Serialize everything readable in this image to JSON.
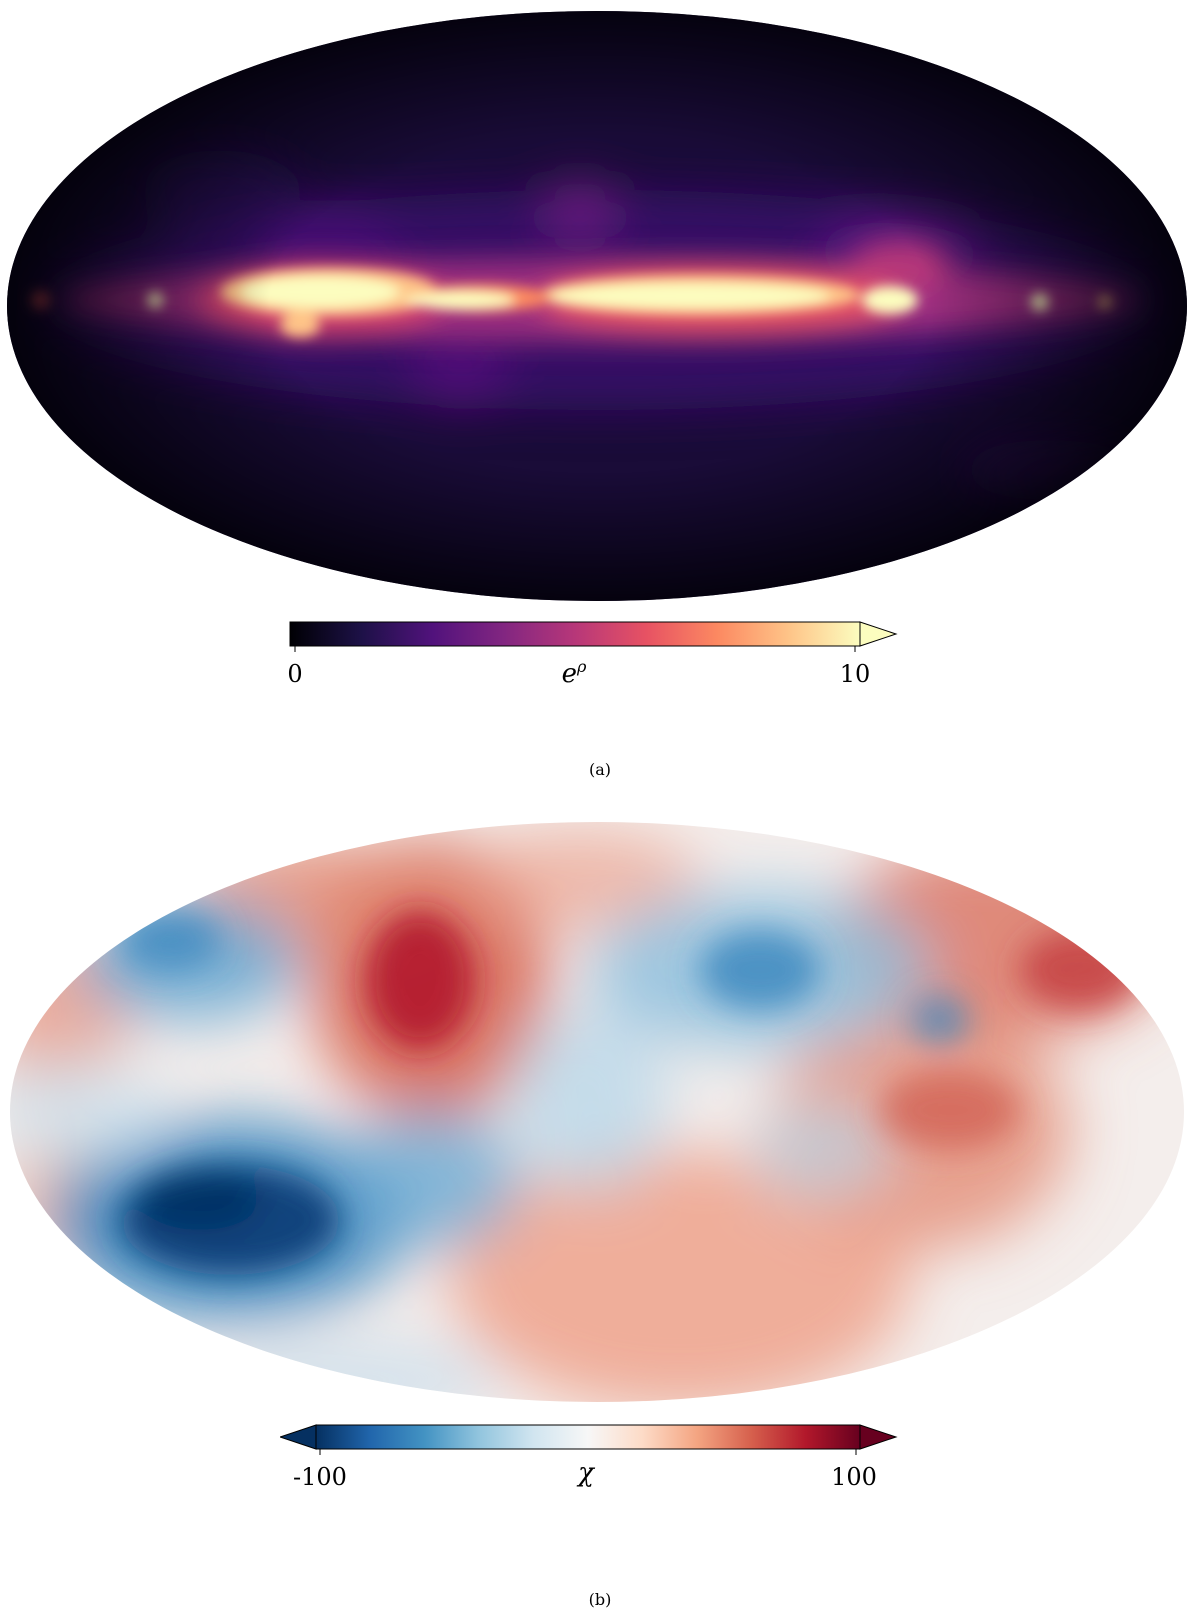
{
  "chart_data": [
    {
      "type": "heatmap",
      "projection": "mollweide",
      "caption": "(a)",
      "colormap": "magma",
      "colorbar": {
        "label": "e",
        "label_superscript": "ρ",
        "min": 0,
        "max": 10,
        "ticks": [
          "0",
          "10"
        ],
        "extend": "max",
        "colors": [
          "#000004",
          "#1d1147",
          "#51127c",
          "#822681",
          "#b73779",
          "#e75263",
          "#fc8961",
          "#fec488",
          "#fcfdbf"
        ]
      }
    },
    {
      "type": "heatmap",
      "projection": "mollweide",
      "caption": "(b)",
      "colormap": "RdBu_r",
      "colorbar": {
        "label": "χ",
        "min": -100,
        "max": 100,
        "ticks": [
          "-100",
          "100"
        ],
        "extend": "both",
        "colors": [
          "#053061",
          "#2166ac",
          "#4393c3",
          "#92c5de",
          "#d1e5f0",
          "#f7f7f7",
          "#fddbc7",
          "#f4a582",
          "#d6604d",
          "#b2182b",
          "#67001f"
        ]
      }
    }
  ]
}
